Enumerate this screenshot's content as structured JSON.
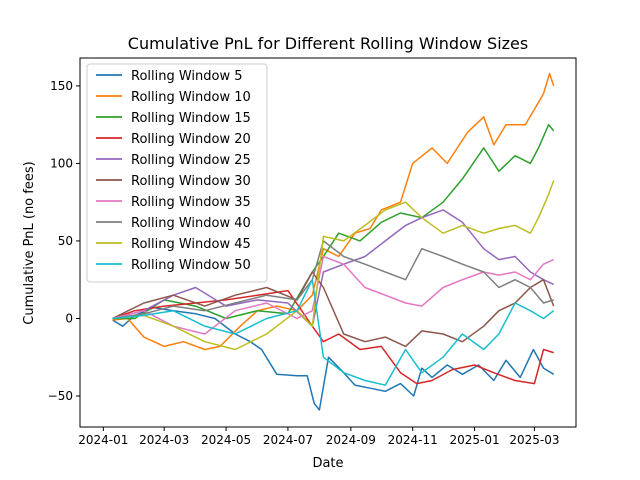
{
  "chart_data": {
    "type": "line",
    "title": "Cumulative PnL for Different Rolling Window Sizes",
    "xlabel": "Date",
    "ylabel": "Cumulative PnL (no fees)",
    "x_type": "date",
    "xlim": [
      "2023-12-09",
      "2025-04-11"
    ],
    "ylim": [
      -70,
      168
    ],
    "xticks": [
      "2024-01-01",
      "2024-03-01",
      "2024-05-01",
      "2024-07-01",
      "2024-09-01",
      "2024-11-01",
      "2025-01-01",
      "2025-03-01"
    ],
    "xtick_labels": [
      "2024-01",
      "2024-03",
      "2024-05",
      "2024-07",
      "2024-09",
      "2024-11",
      "2025-01",
      "2025-03"
    ],
    "yticks": [
      -50,
      0,
      50,
      100,
      150
    ],
    "ytick_labels": [
      "−50",
      "0",
      "50",
      "100",
      "150"
    ],
    "grid": false,
    "legend_position": "upper-left",
    "series": [
      {
        "name": "Rolling Window 5",
        "color": "#1f77b4",
        "x": [
          "2024-01-10",
          "2024-01-20",
          "2024-02-01",
          "2024-02-20",
          "2024-03-10",
          "2024-04-01",
          "2024-04-20",
          "2024-05-10",
          "2024-05-25",
          "2024-06-05",
          "2024-06-20",
          "2024-07-10",
          "2024-07-20",
          "2024-07-27",
          "2024-08-01",
          "2024-08-10",
          "2024-08-25",
          "2024-09-05",
          "2024-09-20",
          "2024-10-05",
          "2024-10-20",
          "2024-11-02",
          "2024-11-10",
          "2024-11-20",
          "2024-12-05",
          "2024-12-20",
          "2025-01-05",
          "2025-01-20",
          "2025-02-01",
          "2025-02-15",
          "2025-02-28",
          "2025-03-10",
          "2025-03-20"
        ],
        "values": [
          -1,
          -5,
          2,
          7,
          5,
          3,
          0,
          -10,
          -15,
          -20,
          -36,
          -37,
          -37,
          -55,
          -59,
          -25,
          -35,
          -43,
          -45,
          -47,
          -42,
          -50,
          -32,
          -38,
          -30,
          -36,
          -30,
          -40,
          -27,
          -38,
          -20,
          -32,
          -36
        ]
      },
      {
        "name": "Rolling Window 10",
        "color": "#ff7f0e",
        "x": [
          "2024-01-10",
          "2024-01-25",
          "2024-02-10",
          "2024-03-01",
          "2024-03-20",
          "2024-04-10",
          "2024-04-25",
          "2024-05-15",
          "2024-06-01",
          "2024-06-20",
          "2024-07-10",
          "2024-07-25",
          "2024-08-05",
          "2024-08-20",
          "2024-09-05",
          "2024-09-20",
          "2024-10-01",
          "2024-10-20",
          "2024-11-01",
          "2024-11-20",
          "2024-12-05",
          "2024-12-25",
          "2025-01-10",
          "2025-01-20",
          "2025-02-01",
          "2025-02-20",
          "2025-03-01",
          "2025-03-10",
          "2025-03-16",
          "2025-03-20"
        ],
        "values": [
          -1,
          0,
          -12,
          -18,
          -15,
          -20,
          -18,
          -5,
          5,
          8,
          5,
          15,
          45,
          40,
          55,
          58,
          70,
          75,
          100,
          110,
          100,
          120,
          130,
          112,
          125,
          125,
          135,
          145,
          158,
          150
        ]
      },
      {
        "name": "Rolling Window 15",
        "color": "#2ca02c",
        "x": [
          "2024-01-10",
          "2024-02-01",
          "2024-03-01",
          "2024-04-01",
          "2024-05-01",
          "2024-06-01",
          "2024-07-01",
          "2024-07-25",
          "2024-08-05",
          "2024-08-20",
          "2024-09-10",
          "2024-10-01",
          "2024-10-20",
          "2024-11-10",
          "2024-12-01",
          "2024-12-20",
          "2025-01-10",
          "2025-01-25",
          "2025-02-10",
          "2025-02-25",
          "2025-03-05",
          "2025-03-15",
          "2025-03-20"
        ],
        "values": [
          0,
          0,
          12,
          8,
          0,
          5,
          3,
          30,
          40,
          55,
          50,
          62,
          68,
          65,
          75,
          90,
          110,
          95,
          105,
          100,
          110,
          125,
          121
        ]
      },
      {
        "name": "Rolling Window 20",
        "color": "#d62728",
        "x": [
          "2024-01-10",
          "2024-02-01",
          "2024-03-01",
          "2024-04-01",
          "2024-05-01",
          "2024-06-01",
          "2024-07-01",
          "2024-07-25",
          "2024-08-05",
          "2024-08-20",
          "2024-09-10",
          "2024-10-01",
          "2024-10-20",
          "2024-11-05",
          "2024-11-20",
          "2024-12-10",
          "2025-01-01",
          "2025-01-20",
          "2025-02-10",
          "2025-03-01",
          "2025-03-10",
          "2025-03-20"
        ],
        "values": [
          0,
          5,
          8,
          10,
          12,
          15,
          18,
          -5,
          -15,
          -10,
          -20,
          -18,
          -35,
          -42,
          -40,
          -33,
          -30,
          -35,
          -40,
          -42,
          -20,
          -22
        ]
      },
      {
        "name": "Rolling Window 25",
        "color": "#9467bd",
        "x": [
          "2024-01-10",
          "2024-02-10",
          "2024-03-10",
          "2024-04-01",
          "2024-05-01",
          "2024-06-01",
          "2024-07-01",
          "2024-07-25",
          "2024-08-05",
          "2024-08-25",
          "2024-09-15",
          "2024-10-05",
          "2024-10-25",
          "2024-11-10",
          "2024-12-01",
          "2024-12-20",
          "2025-01-10",
          "2025-01-25",
          "2025-02-10",
          "2025-02-25",
          "2025-03-10",
          "2025-03-20"
        ],
        "values": [
          0,
          5,
          15,
          20,
          8,
          12,
          10,
          -5,
          30,
          35,
          40,
          50,
          60,
          65,
          70,
          62,
          45,
          38,
          40,
          30,
          25,
          22
        ]
      },
      {
        "name": "Rolling Window 30",
        "color": "#8c564b",
        "x": [
          "2024-01-10",
          "2024-02-10",
          "2024-03-10",
          "2024-04-10",
          "2024-05-10",
          "2024-06-10",
          "2024-07-10",
          "2024-07-25",
          "2024-08-05",
          "2024-08-25",
          "2024-09-15",
          "2024-10-05",
          "2024-10-25",
          "2024-11-10",
          "2024-12-01",
          "2024-12-20",
          "2025-01-10",
          "2025-01-25",
          "2025-02-10",
          "2025-02-25",
          "2025-03-10",
          "2025-03-20"
        ],
        "values": [
          0,
          10,
          15,
          8,
          15,
          20,
          12,
          30,
          20,
          -10,
          -15,
          -12,
          -18,
          -8,
          -10,
          -15,
          -5,
          5,
          10,
          20,
          25,
          8
        ]
      },
      {
        "name": "Rolling Window 35",
        "color": "#e377c2",
        "x": [
          "2024-01-10",
          "2024-02-10",
          "2024-03-10",
          "2024-04-10",
          "2024-05-10",
          "2024-06-10",
          "2024-07-10",
          "2024-07-25",
          "2024-08-05",
          "2024-08-25",
          "2024-09-15",
          "2024-10-05",
          "2024-10-25",
          "2024-11-10",
          "2024-12-01",
          "2024-12-20",
          "2025-01-10",
          "2025-01-25",
          "2025-02-10",
          "2025-02-25",
          "2025-03-10",
          "2025-03-20"
        ],
        "values": [
          0,
          5,
          -5,
          -10,
          5,
          10,
          0,
          5,
          40,
          35,
          20,
          15,
          10,
          8,
          20,
          25,
          30,
          28,
          30,
          25,
          35,
          38
        ]
      },
      {
        "name": "Rolling Window 40",
        "color": "#7f7f7f",
        "x": [
          "2024-01-10",
          "2024-02-10",
          "2024-03-10",
          "2024-04-10",
          "2024-05-10",
          "2024-06-10",
          "2024-07-10",
          "2024-07-25",
          "2024-08-05",
          "2024-08-25",
          "2024-09-15",
          "2024-10-05",
          "2024-10-25",
          "2024-11-10",
          "2024-12-01",
          "2024-12-20",
          "2025-01-10",
          "2025-01-25",
          "2025-02-10",
          "2025-02-25",
          "2025-03-10",
          "2025-03-20"
        ],
        "values": [
          0,
          3,
          8,
          5,
          10,
          15,
          12,
          25,
          50,
          40,
          35,
          30,
          25,
          45,
          40,
          35,
          30,
          20,
          25,
          20,
          10,
          12
        ]
      },
      {
        "name": "Rolling Window 45",
        "color": "#bcbd22",
        "x": [
          "2024-01-10",
          "2024-02-10",
          "2024-03-10",
          "2024-04-10",
          "2024-05-10",
          "2024-06-10",
          "2024-07-10",
          "2024-07-25",
          "2024-08-05",
          "2024-08-25",
          "2024-09-15",
          "2024-10-05",
          "2024-10-25",
          "2024-11-10",
          "2024-12-01",
          "2024-12-20",
          "2025-01-10",
          "2025-01-25",
          "2025-02-10",
          "2025-02-25",
          "2025-03-05",
          "2025-03-15",
          "2025-03-20"
        ],
        "values": [
          0,
          2,
          -5,
          -15,
          -20,
          -10,
          5,
          -5,
          53,
          50,
          60,
          70,
          75,
          65,
          55,
          60,
          55,
          58,
          60,
          55,
          65,
          80,
          89
        ]
      },
      {
        "name": "Rolling Window 50",
        "color": "#17becf",
        "x": [
          "2024-01-10",
          "2024-02-10",
          "2024-03-10",
          "2024-04-10",
          "2024-05-10",
          "2024-06-10",
          "2024-07-10",
          "2024-07-25",
          "2024-08-05",
          "2024-08-25",
          "2024-09-15",
          "2024-10-05",
          "2024-10-25",
          "2024-11-10",
          "2024-12-01",
          "2024-12-20",
          "2025-01-10",
          "2025-01-25",
          "2025-02-10",
          "2025-02-25",
          "2025-03-10",
          "2025-03-20"
        ],
        "values": [
          0,
          2,
          5,
          -5,
          -10,
          0,
          5,
          25,
          -25,
          -35,
          -40,
          -43,
          -20,
          -35,
          -25,
          -10,
          -20,
          -10,
          10,
          5,
          0,
          5
        ]
      }
    ]
  }
}
